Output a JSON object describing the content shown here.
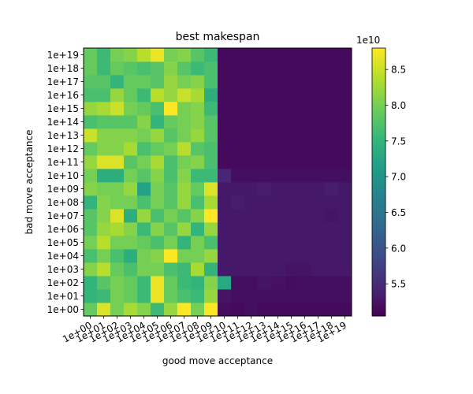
{
  "chart_data": {
    "type": "heatmap",
    "title": "best makespan",
    "xlabel": "good move acceptance",
    "ylabel": "bad move acceptance",
    "x_categories": [
      "1e+00",
      "1e+01",
      "1e+02",
      "1e+03",
      "1e+04",
      "1e+05",
      "1e+06",
      "1e+07",
      "1e+08",
      "1e+09",
      "1e+10",
      "1e+11",
      "1e+12",
      "1e+13",
      "1e+14",
      "1e+15",
      "1e+16",
      "1e+17",
      "1e+18",
      "1e+19"
    ],
    "y_categories": [
      "1e+00",
      "1e+01",
      "1e+02",
      "1e+03",
      "1e+04",
      "1e+05",
      "1e+06",
      "1e+07",
      "1e+08",
      "1e+09",
      "1e+10",
      "1e+11",
      "1e+12",
      "1e+13",
      "1e+14",
      "1e+15",
      "1e+16",
      "1e+17",
      "1e+18",
      "1e+19"
    ],
    "colormap": "viridis",
    "colorbar": {
      "min": 5.05,
      "max": 8.8,
      "ticks": [
        "5.5",
        "6.0",
        "6.5",
        "7.0",
        "7.5",
        "8.0",
        "8.5"
      ],
      "tick_values": [
        5.5,
        6.0,
        6.5,
        7.0,
        7.5,
        8.0,
        8.5
      ],
      "multiplier": "1e10"
    },
    "values": [
      [
        7.9,
        8.6,
        8.0,
        8.3,
        8.1,
        7.6,
        8.2,
        8.8,
        8.0,
        8.8,
        5.18,
        5.15,
        5.2,
        5.15,
        5.15,
        5.15,
        5.15,
        5.15,
        5.15,
        5.15
      ],
      [
        7.5,
        7.6,
        8.0,
        7.9,
        7.6,
        8.7,
        7.9,
        7.7,
        7.6,
        8.2,
        5.25,
        5.2,
        5.2,
        5.2,
        5.2,
        5.2,
        5.2,
        5.2,
        5.2,
        5.2
      ],
      [
        7.5,
        7.8,
        8.0,
        7.9,
        7.6,
        8.7,
        7.9,
        7.6,
        7.5,
        8.1,
        7.3,
        5.2,
        5.2,
        5.25,
        5.22,
        5.18,
        5.2,
        5.2,
        5.2,
        5.2
      ],
      [
        8.1,
        8.4,
        7.9,
        7.7,
        8.0,
        8.0,
        7.7,
        7.6,
        8.3,
        7.5,
        5.3,
        5.3,
        5.3,
        5.3,
        5.3,
        5.25,
        5.25,
        5.3,
        5.3,
        5.3
      ],
      [
        7.7,
        8.0,
        7.7,
        7.4,
        8.0,
        8.1,
        8.8,
        8.0,
        8.0,
        8.2,
        5.3,
        5.3,
        5.3,
        5.3,
        5.3,
        5.3,
        5.3,
        5.3,
        5.3,
        5.3
      ],
      [
        8.0,
        8.4,
        8.0,
        8.0,
        7.9,
        7.7,
        8.0,
        7.5,
        8.0,
        7.7,
        5.3,
        5.3,
        5.3,
        5.3,
        5.3,
        5.3,
        5.3,
        5.3,
        5.3,
        5.3
      ],
      [
        7.8,
        8.2,
        8.3,
        8.1,
        7.6,
        8.1,
        7.8,
        8.2,
        7.5,
        8.2,
        5.3,
        5.3,
        5.3,
        5.3,
        5.3,
        5.3,
        5.3,
        5.3,
        5.3,
        5.3
      ],
      [
        7.8,
        8.1,
        8.6,
        7.4,
        8.2,
        7.7,
        8.0,
        7.8,
        8.1,
        8.8,
        5.3,
        5.3,
        5.3,
        5.3,
        5.3,
        5.3,
        5.3,
        5.3,
        5.25,
        5.3
      ],
      [
        7.5,
        8.1,
        8.0,
        8.0,
        7.7,
        8.0,
        7.8,
        8.2,
        7.7,
        8.3,
        5.3,
        5.35,
        5.3,
        5.3,
        5.3,
        5.3,
        5.3,
        5.3,
        5.3,
        5.3
      ],
      [
        8.1,
        8.0,
        8.0,
        8.2,
        7.2,
        8.0,
        7.8,
        8.2,
        7.9,
        8.6,
        5.3,
        5.3,
        5.3,
        5.35,
        5.3,
        5.3,
        5.3,
        5.3,
        5.35,
        5.3
      ],
      [
        8.0,
        7.4,
        7.4,
        8.0,
        7.8,
        8.1,
        7.7,
        8.1,
        7.6,
        7.6,
        5.45,
        5.2,
        5.2,
        5.2,
        5.2,
        5.2,
        5.2,
        5.2,
        5.2,
        5.2
      ],
      [
        8.2,
        8.6,
        8.6,
        7.8,
        8.0,
        8.3,
        7.7,
        8.0,
        8.1,
        7.7,
        5.15,
        5.15,
        5.15,
        5.15,
        5.15,
        5.15,
        5.15,
        5.15,
        5.15,
        5.15
      ],
      [
        7.9,
        8.1,
        8.1,
        8.3,
        7.7,
        7.9,
        8.0,
        8.4,
        7.8,
        7.7,
        5.15,
        5.15,
        5.15,
        5.15,
        5.15,
        5.15,
        5.15,
        5.15,
        5.15,
        5.15
      ],
      [
        8.5,
        8.1,
        8.1,
        8.1,
        8.0,
        8.2,
        7.8,
        8.0,
        8.2,
        7.8,
        5.15,
        5.15,
        5.15,
        5.15,
        5.15,
        5.15,
        5.15,
        5.15,
        5.15,
        5.15
      ],
      [
        7.7,
        7.8,
        7.8,
        7.8,
        8.1,
        7.5,
        7.9,
        8.0,
        8.1,
        7.8,
        5.15,
        5.15,
        5.15,
        5.15,
        5.15,
        5.15,
        5.15,
        5.15,
        5.15,
        5.15
      ],
      [
        8.2,
        8.3,
        8.5,
        8.0,
        7.9,
        7.7,
        8.8,
        8.0,
        8.1,
        7.6,
        5.15,
        5.15,
        5.15,
        5.15,
        5.15,
        5.15,
        5.15,
        5.15,
        5.15,
        5.15
      ],
      [
        7.7,
        7.7,
        8.2,
        7.9,
        7.6,
        8.4,
        8.2,
        8.5,
        8.3,
        7.4,
        5.15,
        5.15,
        5.15,
        5.15,
        5.15,
        5.15,
        5.15,
        5.15,
        5.15,
        5.15
      ],
      [
        7.8,
        7.8,
        7.5,
        7.9,
        7.9,
        7.8,
        8.2,
        8.0,
        8.1,
        7.7,
        5.15,
        5.15,
        5.15,
        5.15,
        5.15,
        5.15,
        5.15,
        5.15,
        5.15,
        5.15
      ],
      [
        7.9,
        7.6,
        7.9,
        7.8,
        7.7,
        7.8,
        8.1,
        7.8,
        7.6,
        7.7,
        5.15,
        5.15,
        5.15,
        5.15,
        5.15,
        5.15,
        5.15,
        5.15,
        5.15,
        5.15
      ],
      [
        7.9,
        7.6,
        8.0,
        8.1,
        8.4,
        8.7,
        8.0,
        8.1,
        7.8,
        7.6,
        5.15,
        5.15,
        5.15,
        5.15,
        5.15,
        5.15,
        5.15,
        5.15,
        5.15,
        5.15
      ]
    ]
  }
}
